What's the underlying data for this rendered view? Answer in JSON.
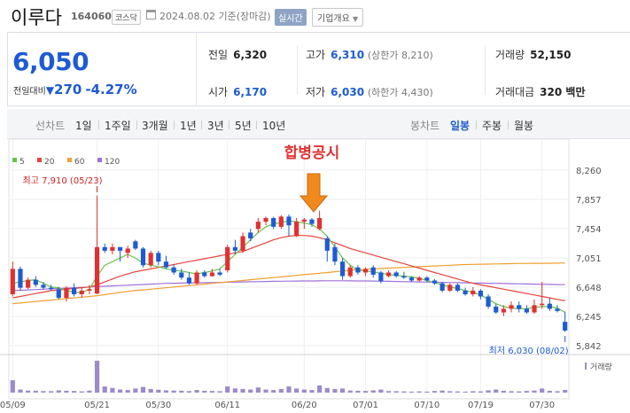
{
  "header": {
    "name": "이루다",
    "code": "164060",
    "market": "코스닥",
    "date_text": "2024.08.02 기준(장마감)",
    "realtime_label": "실시간",
    "company_info_label": "기업개요"
  },
  "summary": {
    "price": "6,050",
    "change_label": "전일대비",
    "change_value": "270",
    "change_pct": "-4.27%",
    "prev_close_label": "전일",
    "prev_close": "6,320",
    "high_label": "고가",
    "high": "6,310",
    "upper_limit": "(상한가 8,210)",
    "volume_label": "거래량",
    "volume": "52,150",
    "open_label": "시가",
    "open": "6,170",
    "low_label": "저가",
    "low": "6,030",
    "lower_limit": "(하한가 4,430)",
    "amount_label": "거래대금",
    "amount": "320 백만"
  },
  "toolbar": {
    "line_chart_label": "선차트",
    "line_periods": [
      "1일",
      "1주일",
      "3개월",
      "1년",
      "3년",
      "5년",
      "10년"
    ],
    "candle_chart_label": "봉차트",
    "candle_periods": [
      "일봉",
      "주봉",
      "월봉"
    ],
    "candle_active": "일봉"
  },
  "colors": {
    "up": "#e03131",
    "down": "#1e5bd3",
    "ma5": "#6ac24a",
    "ma20": "#e8443a",
    "ma60": "#f0a030",
    "ma120": "#a070d8",
    "volume": "#9b8cc8"
  },
  "chart_data": {
    "type": "candlestick",
    "annotation": "합병공시",
    "legend": [
      {
        "name": "5",
        "color": "#6ac24a"
      },
      {
        "name": "20",
        "color": "#e8443a"
      },
      {
        "name": "60",
        "color": "#f0a030"
      },
      {
        "name": "120",
        "color": "#a070d8"
      }
    ],
    "y_ticks": [
      "8,260",
      "7,857",
      "7,454",
      "7,051",
      "6,648",
      "6,245",
      "5,842"
    ],
    "y_tick_values": [
      8260,
      7857,
      7454,
      7051,
      6648,
      6245,
      5842
    ],
    "ylim": [
      5842,
      8260
    ],
    "x_ticks": [
      "05/09",
      "05/21",
      "05/30",
      "06/11",
      "06/20",
      "07/01",
      "07/10",
      "07/19",
      "07/30"
    ],
    "high_label": "최고 7,910 (05/23)",
    "low_label": "최저 6,030 (08/02)",
    "volume_label": "거래량",
    "candles": [
      [
        6550,
        6900,
        6520,
        7000
      ],
      [
        6900,
        6640,
        6600,
        6930
      ],
      [
        6640,
        6750,
        6620,
        6780
      ],
      [
        6750,
        6680,
        6650,
        6800
      ],
      [
        6680,
        6640,
        6620,
        6720
      ],
      [
        6640,
        6620,
        6600,
        6680
      ],
      [
        6620,
        6500,
        6480,
        6650
      ],
      [
        6500,
        6640,
        6450,
        6660
      ],
      [
        6640,
        6550,
        6520,
        6700
      ],
      [
        6550,
        6600,
        6500,
        6650
      ],
      [
        6600,
        6620,
        6550,
        6680
      ],
      [
        6560,
        7200,
        6550,
        7910
      ],
      [
        7200,
        7150,
        7120,
        7250
      ],
      [
        7150,
        7200,
        7100,
        7250
      ],
      [
        7200,
        7150,
        7000,
        7200
      ],
      [
        7120,
        7180,
        7050,
        7220
      ],
      [
        7280,
        7180,
        7160,
        7300
      ],
      [
        7180,
        6950,
        6920,
        7200
      ],
      [
        6950,
        7120,
        6920,
        7150
      ],
      [
        7120,
        7000,
        6950,
        7150
      ],
      [
        7000,
        6920,
        6900,
        7080
      ],
      [
        6920,
        6850,
        6820,
        6960
      ],
      [
        6850,
        6780,
        6750,
        6900
      ],
      [
        6780,
        6700,
        6680,
        6850
      ],
      [
        6700,
        6850,
        6680,
        6880
      ],
      [
        6850,
        6800,
        6780,
        6880
      ],
      [
        6800,
        6850,
        6790,
        6900
      ],
      [
        6850,
        6820,
        6800,
        6900
      ],
      [
        6880,
        7200,
        6850,
        7230
      ],
      [
        7200,
        7150,
        7100,
        7300
      ],
      [
        7150,
        7350,
        7120,
        7400
      ],
      [
        7400,
        7320,
        7280,
        7450
      ],
      [
        7450,
        7550,
        7400,
        7600
      ],
      [
        7550,
        7600,
        7500,
        7620
      ],
      [
        7600,
        7480,
        7450,
        7620
      ],
      [
        7480,
        7620,
        7450,
        7640
      ],
      [
        7620,
        7500,
        7350,
        7650
      ],
      [
        7350,
        7550,
        7340,
        7600
      ],
      [
        7550,
        7580,
        7450,
        7600
      ],
      [
        7580,
        7520,
        7480,
        7600
      ],
      [
        7450,
        7600,
        7430,
        7700
      ],
      [
        7320,
        7150,
        7000,
        7350
      ],
      [
        7200,
        7000,
        6950,
        7250
      ],
      [
        7000,
        6800,
        6750,
        7050
      ],
      [
        6800,
        6920,
        6780,
        6950
      ],
      [
        6920,
        6850,
        6820,
        6950
      ],
      [
        6850,
        6900,
        6800,
        6920
      ],
      [
        6920,
        6820,
        6780,
        6950
      ],
      [
        6850,
        6730,
        6700,
        6870
      ],
      [
        6800,
        6850,
        6780,
        6880
      ],
      [
        6850,
        6800,
        6780,
        6870
      ],
      [
        6800,
        6780,
        6760,
        6860
      ],
      [
        6780,
        6740,
        6720,
        6800
      ],
      [
        6740,
        6780,
        6720,
        6800
      ],
      [
        6780,
        6740,
        6720,
        6800
      ],
      [
        6740,
        6700,
        6680,
        6760
      ],
      [
        6700,
        6600,
        6580,
        6720
      ],
      [
        6600,
        6680,
        6580,
        6700
      ],
      [
        6680,
        6600,
        6580,
        6700
      ],
      [
        6600,
        6550,
        6530,
        6640
      ],
      [
        6550,
        6600,
        6520,
        6650
      ],
      [
        6600,
        6520,
        6480,
        6620
      ],
      [
        6520,
        6380,
        6350,
        6550
      ],
      [
        6380,
        6300,
        6280,
        6420
      ],
      [
        6300,
        6350,
        6250,
        6400
      ],
      [
        6350,
        6400,
        6300,
        6450
      ],
      [
        6400,
        6350,
        6300,
        6450
      ],
      [
        6350,
        6300,
        6280,
        6400
      ],
      [
        6300,
        6400,
        6280,
        6480
      ],
      [
        6400,
        6420,
        6350,
        6720
      ],
      [
        6420,
        6350,
        6320,
        6500
      ],
      [
        6350,
        6320,
        6300,
        6400
      ],
      [
        6170,
        6050,
        6030,
        6310
      ]
    ],
    "ma5": [
      6700,
      6720,
      6740,
      6750,
      6700,
      6650,
      6640,
      6600,
      6580,
      6570,
      6620,
      6800,
      6950,
      7000,
      7050,
      7100,
      7050,
      6980,
      6950,
      6930,
      6900,
      6880,
      6870,
      6850,
      6830,
      6850,
      6870,
      6900,
      7000,
      7100,
      7200,
      7300,
      7400,
      7480,
      7520,
      7540,
      7560,
      7550,
      7530,
      7510,
      7450,
      7350,
      7200,
      7050,
      6950,
      6880,
      6870,
      6860,
      6840,
      6820,
      6810,
      6800,
      6790,
      6770,
      6740,
      6710,
      6680,
      6650,
      6630,
      6600,
      6580,
      6540,
      6480,
      6420,
      6380,
      6360,
      6350,
      6350,
      6370,
      6380,
      6380,
      6360,
      6300
    ],
    "ma20": [
      6500,
      6520,
      6540,
      6560,
      6580,
      6600,
      6610,
      6620,
      6630,
      6640,
      6650,
      6680,
      6720,
      6760,
      6800,
      6830,
      6860,
      6880,
      6900,
      6920,
      6940,
      6960,
      6980,
      7000,
      7020,
      7040,
      7060,
      7080,
      7100,
      7120,
      7140,
      7180,
      7220,
      7260,
      7300,
      7330,
      7350,
      7360,
      7360,
      7350,
      7330,
      7300,
      7260,
      7220,
      7180,
      7150,
      7120,
      7090,
      7060,
      7030,
      7000,
      6970,
      6940,
      6910,
      6880,
      6850,
      6820,
      6790,
      6760,
      6730,
      6700,
      6680,
      6660,
      6640,
      6620,
      6600,
      6580,
      6560,
      6540,
      6520,
      6500,
      6480,
      6460
    ],
    "ma60": [
      6420,
      6430,
      6440,
      6450,
      6460,
      6470,
      6480,
      6490,
      6500,
      6510,
      6520,
      6530,
      6545,
      6560,
      6575,
      6590,
      6600,
      6610,
      6620,
      6630,
      6640,
      6650,
      6660,
      6670,
      6680,
      6690,
      6700,
      6710,
      6720,
      6730,
      6740,
      6750,
      6760,
      6770,
      6780,
      6790,
      6800,
      6810,
      6820,
      6830,
      6840,
      6850,
      6860,
      6870,
      6880,
      6890,
      6895,
      6900,
      6905,
      6910,
      6915,
      6920,
      6925,
      6930,
      6935,
      6940,
      6945,
      6950,
      6955,
      6960,
      6962,
      6964,
      6966,
      6968,
      6970,
      6972,
      6974,
      6975,
      6976,
      6977,
      6978,
      6979,
      6980
    ],
    "ma120": [
      6600,
      6605,
      6610,
      6615,
      6620,
      6625,
      6630,
      6635,
      6640,
      6645,
      6650,
      6655,
      6660,
      6665,
      6670,
      6675,
      6680,
      6685,
      6690,
      6695,
      6700,
      6702,
      6704,
      6706,
      6708,
      6710,
      6712,
      6714,
      6716,
      6718,
      6720,
      6722,
      6724,
      6726,
      6728,
      6730,
      6731,
      6732,
      6733,
      6734,
      6735,
      6736,
      6736,
      6736,
      6735,
      6734,
      6733,
      6732,
      6730,
      6728,
      6726,
      6724,
      6722,
      6720,
      6718,
      6716,
      6714,
      6712,
      6710,
      6708,
      6706,
      6704,
      6702,
      6700,
      6698,
      6696,
      6694,
      6692,
      6690,
      6688,
      6686,
      6684,
      6682
    ],
    "volume": [
      120,
      30,
      20,
      18,
      15,
      14,
      22,
      18,
      16,
      12,
      20,
      310,
      60,
      45,
      30,
      25,
      40,
      55,
      35,
      28,
      22,
      20,
      18,
      15,
      25,
      18,
      16,
      14,
      60,
      40,
      35,
      30,
      50,
      30,
      25,
      35,
      60,
      40,
      30,
      25,
      70,
      45,
      35,
      40,
      20,
      18,
      16,
      22,
      30,
      15,
      14,
      12,
      10,
      12,
      10,
      16,
      20,
      14,
      12,
      10,
      14,
      12,
      22,
      30,
      18,
      14,
      12,
      16,
      20,
      40,
      18,
      14,
      26
    ]
  }
}
